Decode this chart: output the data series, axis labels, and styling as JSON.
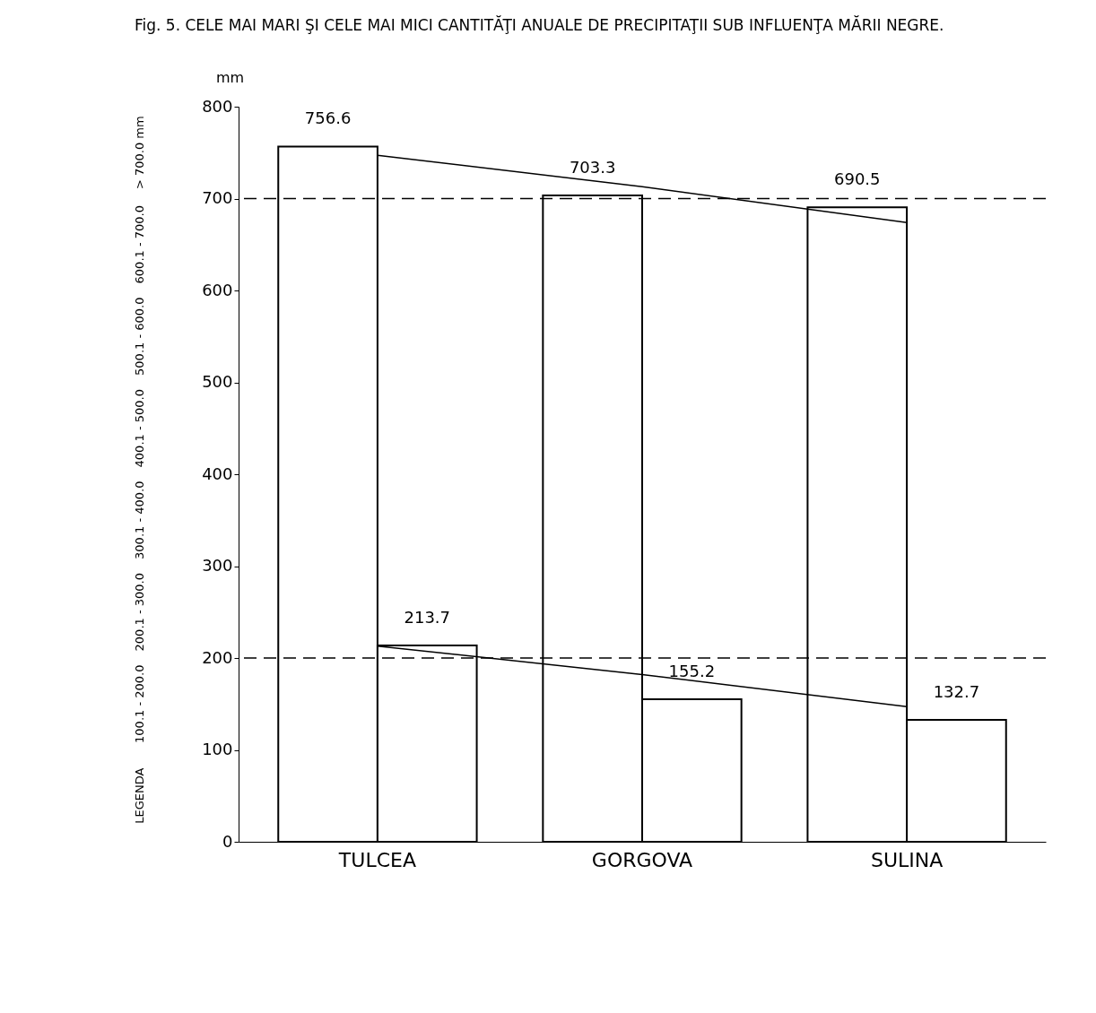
{
  "chart_data": {
    "type": "bar",
    "title": "Fig. 5. CELE MAI MARI ŞI CELE MAI MICI CANTITĂŢI ANUALE DE PRECIPITAŢII SUB INFLUENŢA MĂRII NEGRE.",
    "ylabel": "mm",
    "categories": [
      "TULCEA",
      "GORGOVA",
      "SULINA"
    ],
    "series": [
      {
        "color": "#ffffff",
        "values": [
          756.6,
          703.3,
          690.5
        ],
        "value_labels": [
          "756.6",
          "703.3",
          "690.5"
        ]
      },
      {
        "color": "#ffffff",
        "values": [
          213.7,
          155.2,
          132.7
        ],
        "value_labels": [
          "213.7",
          "155.2",
          "132.7"
        ]
      },
      {
        "type": "line",
        "color": "#000000",
        "x": [
          "TULCEA",
          "GORGOVA",
          "SULINA"
        ],
        "values": [
          747,
          713,
          674
        ]
      },
      {
        "type": "line",
        "color": "#000000",
        "x": [
          "TULCEA",
          "GORGOVA",
          "SULINA"
        ],
        "values": [
          213,
          182,
          147
        ]
      }
    ],
    "ylim": [
      0,
      800
    ],
    "yticks": [
      0,
      100,
      200,
      300,
      400,
      500,
      600,
      700,
      800
    ],
    "ref_lines": [
      {
        "axis": "y",
        "value": 700,
        "line_style": "dashed",
        "color": "#000000"
      },
      {
        "axis": "y",
        "value": 200,
        "line_style": "dashed",
        "color": "#000000"
      }
    ],
    "grid": false,
    "annotations": [
      "LEGENDA",
      "100.1 - 200.0",
      "200.1 - 300.0",
      "300.1 - 400.0",
      "400.1 - 500.0",
      "500.1 - 600.0",
      "600.1 - 700.0",
      "> 700.0 mm"
    ]
  }
}
